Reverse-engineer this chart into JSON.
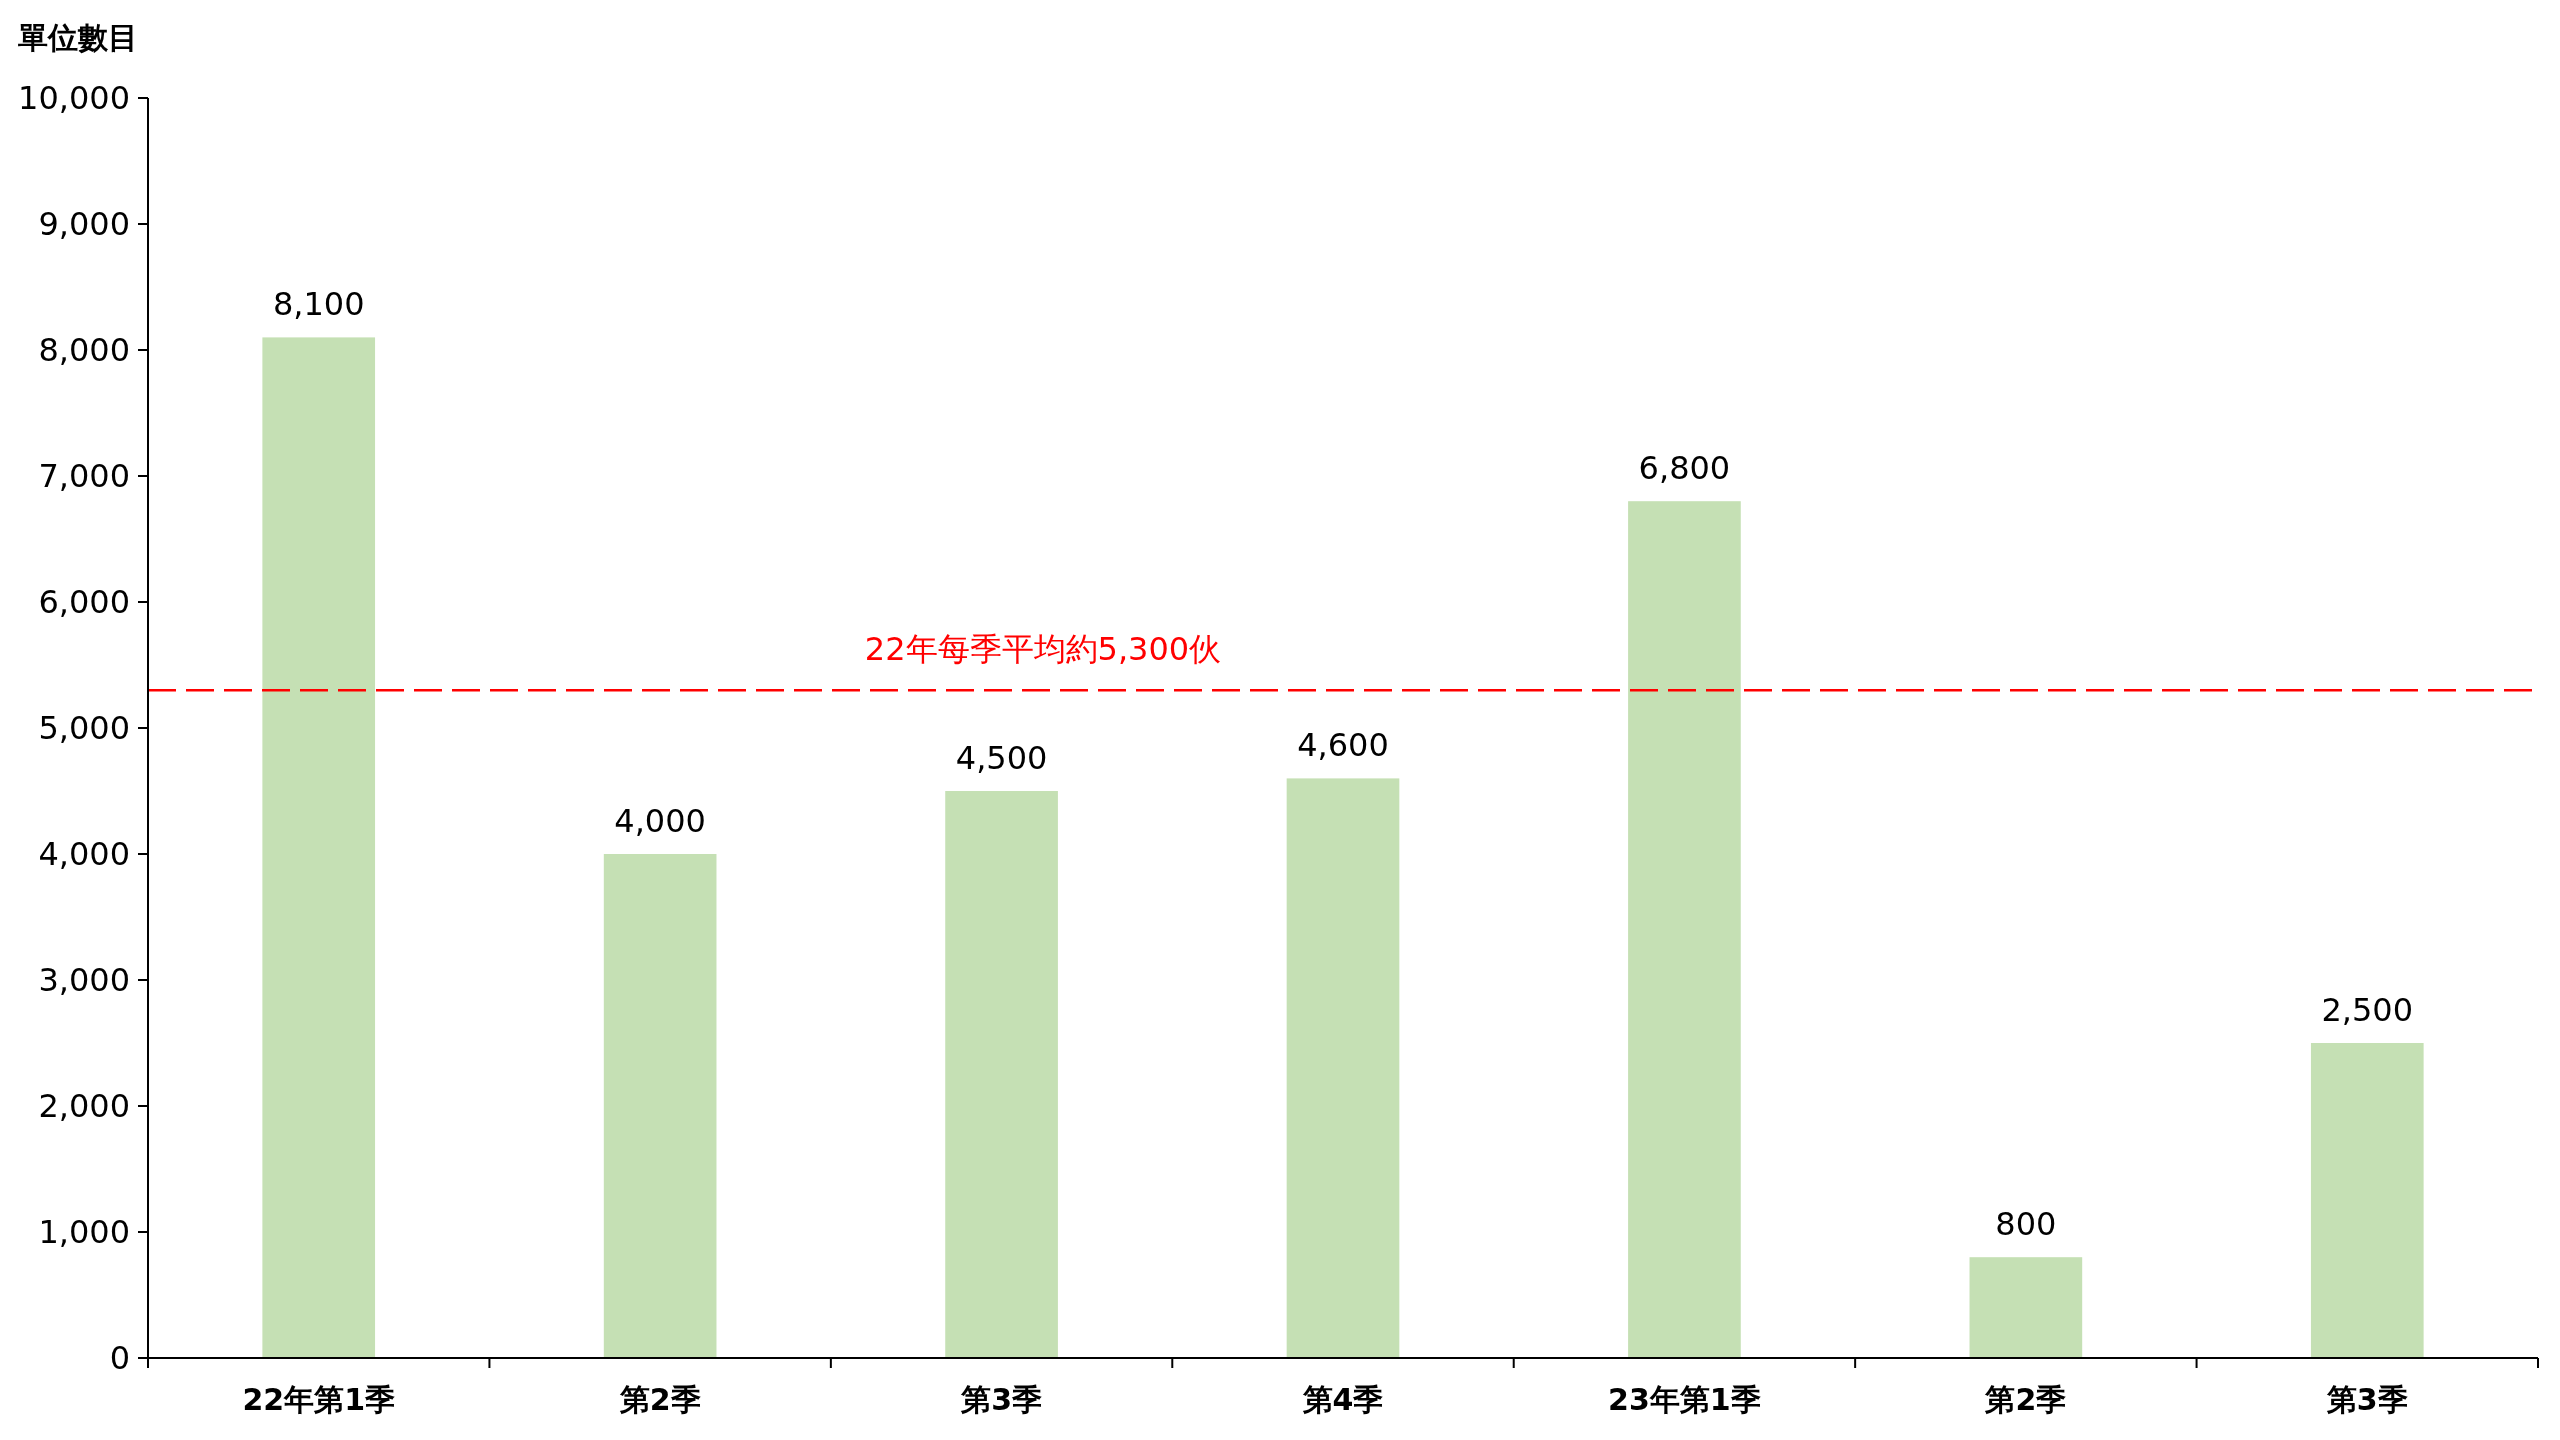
{
  "chart_data": {
    "type": "bar",
    "ylabel": "單位數目",
    "categories": [
      "22年第1季",
      "第2季",
      "第3季",
      "第4季",
      "23年第1季",
      "第2季",
      "第3季"
    ],
    "values": [
      8100,
      4000,
      4500,
      4600,
      6800,
      800,
      2500
    ],
    "color": "#c5e0b4",
    "ylim": [
      0,
      10000
    ],
    "yticks": [
      {
        "value": 0,
        "label": "0"
      },
      {
        "value": 1000,
        "label": "1,000"
      },
      {
        "value": 2000,
        "label": "2,000"
      },
      {
        "value": 3000,
        "label": "3,000"
      },
      {
        "value": 4000,
        "label": "4,000"
      },
      {
        "value": 5000,
        "label": "5,000"
      },
      {
        "value": 6000,
        "label": "6,000"
      },
      {
        "value": 7000,
        "label": "7,000"
      },
      {
        "value": 8000,
        "label": "8,000"
      },
      {
        "value": 9000,
        "label": "9,000"
      },
      {
        "value": 10000,
        "label": "10,000"
      }
    ],
    "value_labels": [
      "8,100",
      "4,000",
      "4,500",
      "4,600",
      "6,800",
      "800",
      "2,500"
    ],
    "grid": false,
    "ref_lines": [
      {
        "axis": "y",
        "value": 5300,
        "label": "22年每季平均約5,300伙",
        "color": "#ff0000",
        "line_style": "dashed"
      }
    ]
  }
}
